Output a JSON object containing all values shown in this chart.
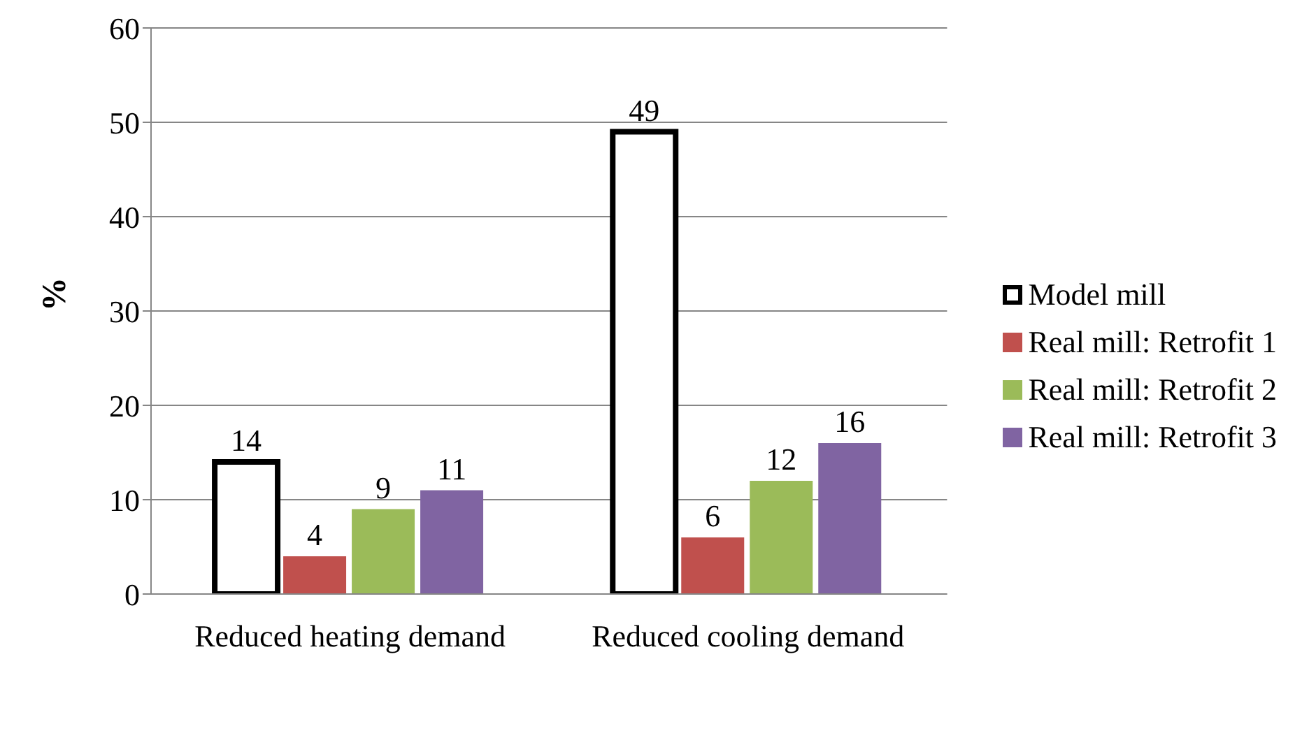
{
  "chart_data": {
    "type": "bar",
    "ylabel": "%",
    "categories": [
      "Reduced heating demand",
      "Reduced cooling demand"
    ],
    "series": [
      {
        "name": "Model mill",
        "color": "#ffffff",
        "values": [
          14,
          49
        ]
      },
      {
        "name": "Real mill: Retrofit 1",
        "color": "#c0504d",
        "values": [
          4,
          6
        ]
      },
      {
        "name": "Real mill: Retrofit 2",
        "color": "#9bbb59",
        "values": [
          9,
          12
        ]
      },
      {
        "name": "Real mill: Retrofit 3",
        "color": "#8064a2",
        "values": [
          11,
          16
        ]
      }
    ],
    "ylim": [
      0,
      60
    ],
    "yticks": [
      0,
      10,
      20,
      30,
      40,
      50,
      60
    ],
    "grid": "y",
    "legend": "right",
    "data_labels": true
  }
}
